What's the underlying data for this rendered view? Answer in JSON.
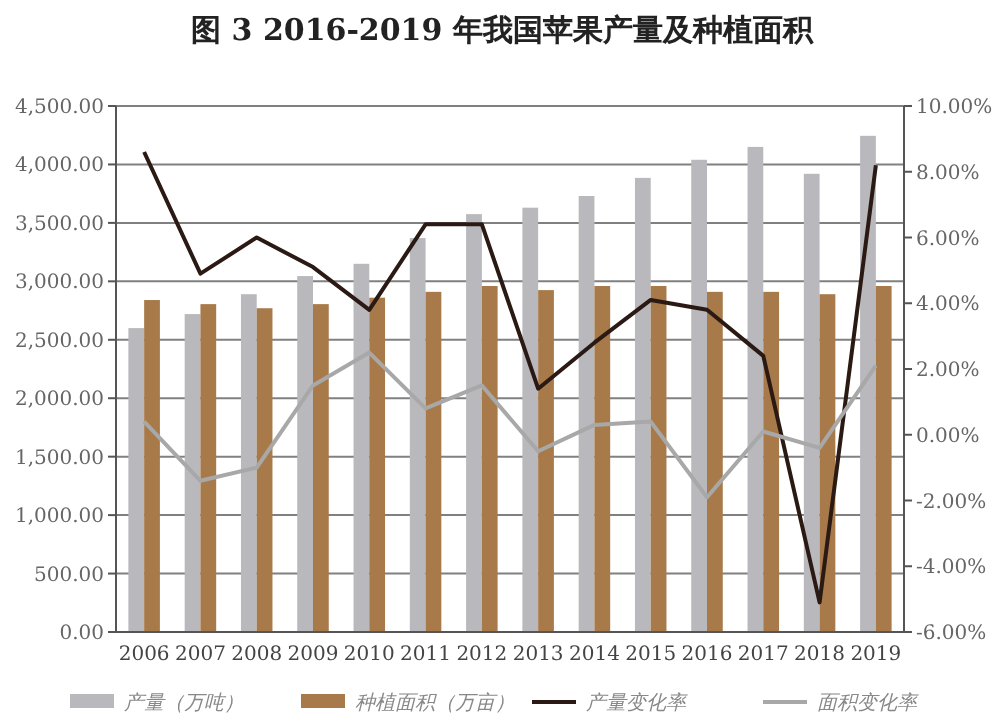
{
  "chart_data": {
    "type": "bar",
    "title": "图 3 2016-2019 年我国苹果产量及种植面积",
    "categories": [
      "2006",
      "2007",
      "2008",
      "2009",
      "2010",
      "2011",
      "2012",
      "2013",
      "2014",
      "2015",
      "2016",
      "2017",
      "2018",
      "2019"
    ],
    "series": [
      {
        "name": "产量（万吨）",
        "color": "#b9b9bd",
        "values": [
          2600,
          2720,
          2890,
          3045,
          3150,
          3370,
          3575,
          3630,
          3730,
          3885,
          4040,
          4150,
          3920,
          4245
        ]
      },
      {
        "name": "种植面积（万亩）",
        "color": "#a87a4a",
        "values": [
          2840,
          2805,
          2770,
          2805,
          2860,
          2910,
          2960,
          2925,
          2960,
          2960,
          2910,
          2910,
          2890,
          2960
        ]
      },
      {
        "name": "产量变化率",
        "type": "line",
        "axis": "y2",
        "color": "#2b1a14",
        "values": [
          8.6,
          4.9,
          6.0,
          5.1,
          3.8,
          6.4,
          6.4,
          1.4,
          2.8,
          4.1,
          3.8,
          2.4,
          -5.1,
          8.2
        ]
      },
      {
        "name": "面积变化率",
        "type": "line",
        "axis": "y2",
        "color": "#a8a8a8",
        "values": [
          0.4,
          -1.4,
          -1.0,
          1.5,
          2.5,
          0.8,
          1.5,
          -0.5,
          0.3,
          0.4,
          -1.9,
          0.1,
          -0.4,
          2.1
        ]
      }
    ],
    "ylim": [
      0,
      4500
    ],
    "yticks": [
      {
        "value": 0,
        "label": "0.00"
      },
      {
        "value": 500,
        "label": "500.00"
      },
      {
        "value": 1000,
        "label": "1,000.00"
      },
      {
        "value": 1500,
        "label": "1,500.00"
      },
      {
        "value": 2000,
        "label": "2,000.00"
      },
      {
        "value": 2500,
        "label": "2,500.00"
      },
      {
        "value": 3000,
        "label": "3,000.00"
      },
      {
        "value": 3500,
        "label": "3,500.00"
      },
      {
        "value": 4000,
        "label": "4,000.00"
      },
      {
        "value": 4500,
        "label": "4,500.00"
      }
    ],
    "y2lim": [
      -6,
      10
    ],
    "y2ticks": [
      {
        "value": -6,
        "label": "-6.00%"
      },
      {
        "value": -4,
        "label": "-4.00%"
      },
      {
        "value": -2,
        "label": "-2.00%"
      },
      {
        "value": 0,
        "label": "0.00%"
      },
      {
        "value": 2,
        "label": "2.00%"
      },
      {
        "value": 4,
        "label": "4.00%"
      },
      {
        "value": 6,
        "label": "6.00%"
      },
      {
        "value": 8,
        "label": "8.00%"
      },
      {
        "value": 10,
        "label": "10.00%"
      }
    ],
    "grid": "y",
    "legend": "bottom",
    "marker": "none",
    "line_style": "solid"
  }
}
